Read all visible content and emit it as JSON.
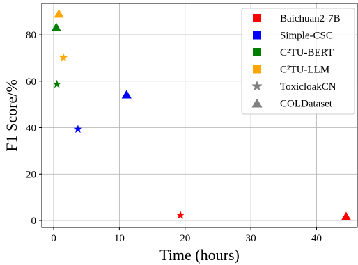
{
  "chart_data": {
    "type": "scatter",
    "title": "",
    "xlabel": "Time (hours)",
    "ylabel": "F1 Score/%",
    "xlim": [
      -1.8,
      46.2
    ],
    "ylim": [
      -3,
      93.5
    ],
    "xticks": [
      0,
      10,
      20,
      30,
      40
    ],
    "yticks": [
      0,
      20,
      40,
      60,
      80
    ],
    "grid": true,
    "legend_position": "top-right",
    "legend": {
      "models": [
        {
          "name": "Baichuan2-7B",
          "color": "#ff0000"
        },
        {
          "name": "Simple-CSC",
          "color": "#0000ff"
        },
        {
          "name": "C²TU-BERT",
          "color": "#008000"
        },
        {
          "name": "C²TU-LLM",
          "color": "#ffa500"
        }
      ],
      "datasets": [
        {
          "name": "ToxicloakCN",
          "marker": "star",
          "color": "#808080"
        },
        {
          "name": "COLDataset",
          "marker": "triangle",
          "color": "#808080"
        }
      ]
    },
    "points": [
      {
        "model": "Baichuan2-7B",
        "dataset": "ToxicloakCN",
        "x": 19.3,
        "y": 2.3
      },
      {
        "model": "Baichuan2-7B",
        "dataset": "COLDataset",
        "x": 44.5,
        "y": 1.5
      },
      {
        "model": "Simple-CSC",
        "dataset": "ToxicloakCN",
        "x": 3.7,
        "y": 39.3
      },
      {
        "model": "Simple-CSC",
        "dataset": "COLDataset",
        "x": 11.1,
        "y": 54.0
      },
      {
        "model": "C²TU-BERT",
        "dataset": "ToxicloakCN",
        "x": 0.5,
        "y": 58.7
      },
      {
        "model": "C²TU-BERT",
        "dataset": "COLDataset",
        "x": 0.4,
        "y": 83.0
      },
      {
        "model": "C²TU-LLM",
        "dataset": "ToxicloakCN",
        "x": 1.5,
        "y": 70.2
      },
      {
        "model": "C²TU-LLM",
        "dataset": "COLDataset",
        "x": 0.8,
        "y": 88.8
      }
    ]
  }
}
